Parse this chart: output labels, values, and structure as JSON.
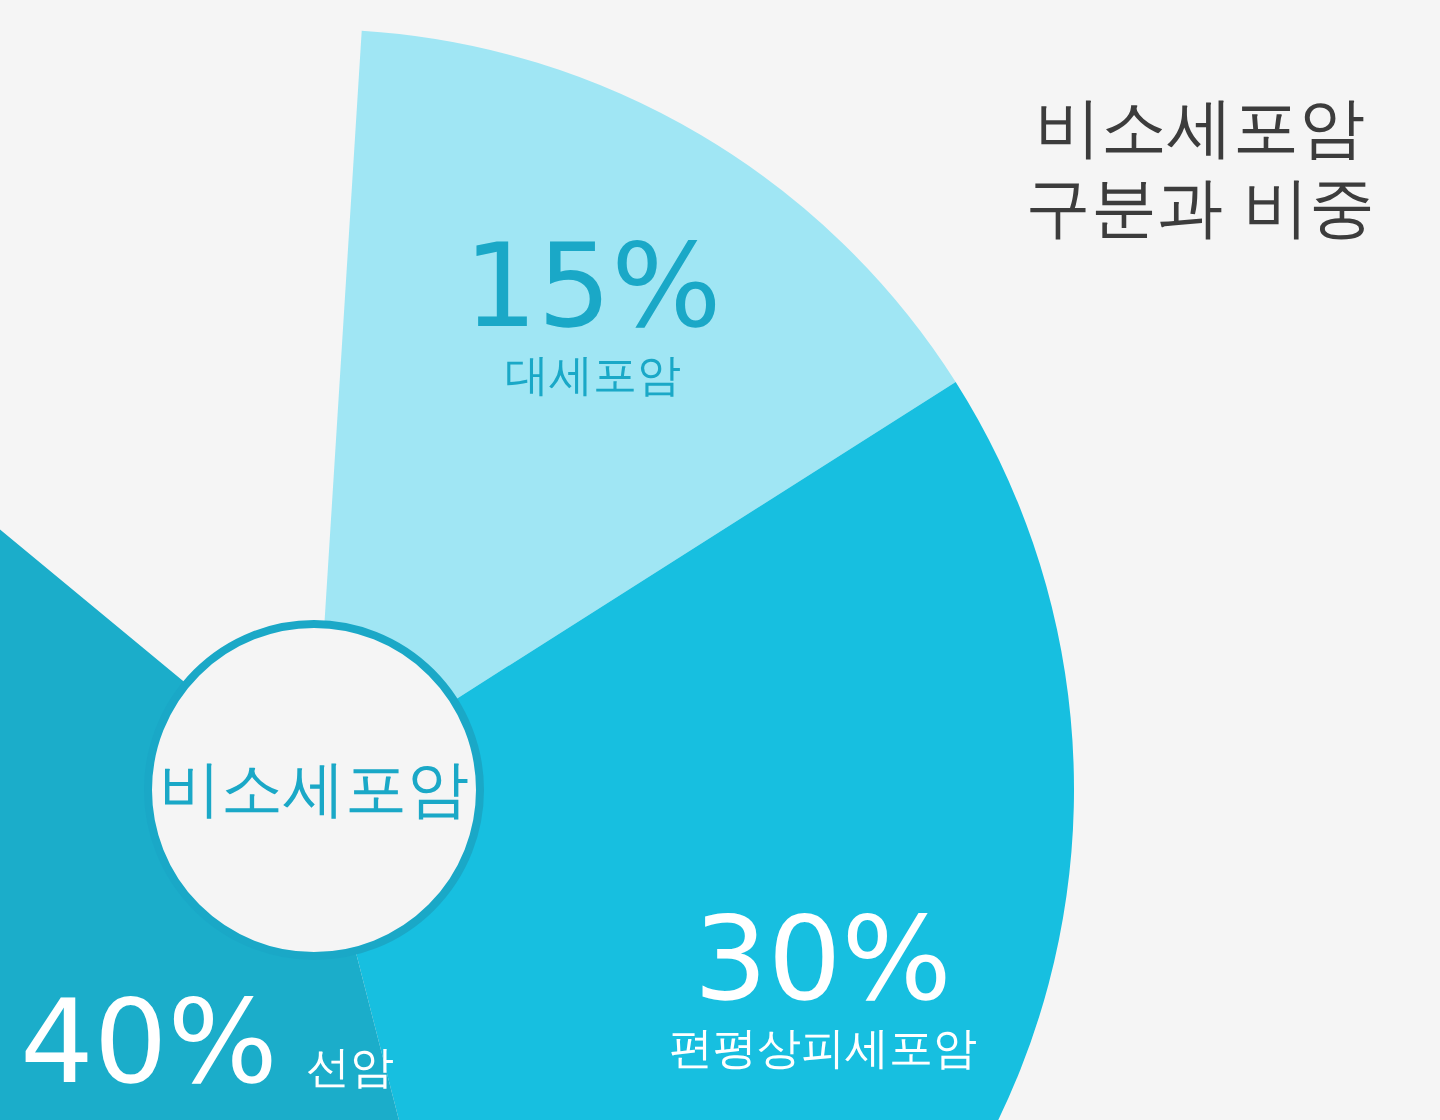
{
  "chart_data": {
    "type": "donut",
    "title": "비소세포암 구분과 비중",
    "categories": [
      "대세포암",
      "편평상피세포암",
      "선암"
    ],
    "values": [
      15,
      30,
      40
    ],
    "colors": [
      "#a0e6f4",
      "#17bfe0",
      "#1badca"
    ],
    "value_labels": [
      "15%",
      "30%",
      "40%"
    ],
    "annotations": [
      "비소세포암"
    ],
    "legend": false
  }
}
